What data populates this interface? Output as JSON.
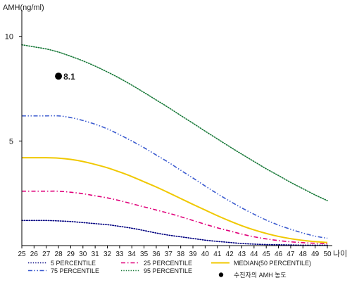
{
  "chart_data": {
    "type": "line",
    "ylabel": "AMH(ng/ml)",
    "xlabel": "나이",
    "x": [
      25,
      26,
      27,
      28,
      29,
      30,
      31,
      32,
      33,
      34,
      35,
      36,
      37,
      38,
      39,
      40,
      41,
      42,
      43,
      44,
      45,
      46,
      47,
      48,
      49,
      50
    ],
    "xlim": [
      25,
      50
    ],
    "ylim": [
      0,
      11
    ],
    "yticks": [
      5,
      10
    ],
    "grid": false,
    "legend_position": "bottom",
    "series": [
      {
        "name": "5 PERCENTILE",
        "color": "#000080",
        "dash": "dotted",
        "values": [
          1.2,
          1.2,
          1.2,
          1.18,
          1.15,
          1.1,
          1.05,
          1.0,
          0.92,
          0.83,
          0.72,
          0.6,
          0.5,
          0.42,
          0.34,
          0.26,
          0.2,
          0.15,
          0.1,
          0.07,
          0.05,
          0.04,
          0.03,
          0.02,
          0.02,
          0.02
        ]
      },
      {
        "name": "25 PERCENTILE",
        "color": "#e0007a",
        "dash": "dashdot",
        "values": [
          2.6,
          2.6,
          2.6,
          2.6,
          2.55,
          2.48,
          2.38,
          2.28,
          2.15,
          2.0,
          1.85,
          1.7,
          1.55,
          1.38,
          1.2,
          1.02,
          0.85,
          0.7,
          0.55,
          0.42,
          0.32,
          0.24,
          0.18,
          0.14,
          0.11,
          0.09
        ]
      },
      {
        "name": "MEDIAN(50 PERCENTILE)",
        "color": "#f0c800",
        "dash": "solid",
        "values": [
          4.2,
          4.2,
          4.2,
          4.18,
          4.12,
          4.02,
          3.88,
          3.72,
          3.52,
          3.3,
          3.05,
          2.8,
          2.53,
          2.25,
          1.97,
          1.7,
          1.43,
          1.18,
          0.95,
          0.75,
          0.58,
          0.44,
          0.33,
          0.25,
          0.19,
          0.15
        ]
      },
      {
        "name": "75 PERCENTILE",
        "color": "#3a5acf",
        "dash": "dashdotdot",
        "values": [
          6.2,
          6.2,
          6.2,
          6.2,
          6.12,
          5.98,
          5.8,
          5.58,
          5.3,
          5.0,
          4.68,
          4.33,
          3.98,
          3.6,
          3.23,
          2.85,
          2.48,
          2.13,
          1.8,
          1.5,
          1.22,
          0.98,
          0.78,
          0.6,
          0.45,
          0.35
        ]
      },
      {
        "name": "95 PERCENTILE",
        "color": "#1a7a3a",
        "dash": "dotted",
        "values": [
          9.6,
          9.5,
          9.4,
          9.25,
          9.05,
          8.83,
          8.58,
          8.3,
          8.0,
          7.67,
          7.32,
          6.96,
          6.6,
          6.22,
          5.85,
          5.47,
          5.1,
          4.73,
          4.37,
          4.02,
          3.67,
          3.35,
          3.02,
          2.72,
          2.42,
          2.15
        ]
      }
    ],
    "points": [
      {
        "name": "수진자의 AMH 농도",
        "x": 28,
        "y": 8.1,
        "label": "8.1",
        "color": "#000000"
      }
    ]
  }
}
